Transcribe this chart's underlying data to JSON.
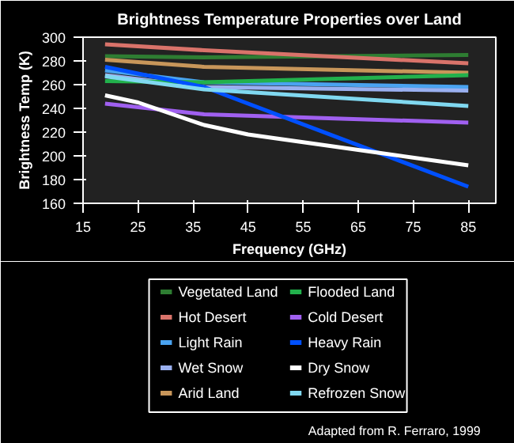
{
  "chart_data": {
    "type": "line",
    "title": "Brightness Temperature Properties over Land",
    "xlabel": "Frequency (GHz)",
    "ylabel": "Brightness Temp (K)",
    "xlim": [
      15,
      90
    ],
    "xticks": [
      15,
      25,
      35,
      45,
      55,
      65,
      75,
      85
    ],
    "ylim": [
      160,
      300
    ],
    "yticks": [
      160,
      180,
      200,
      220,
      240,
      260,
      280,
      300
    ],
    "grid": false,
    "legend": "bottom",
    "annotations": [
      "Adapted from R. Ferraro, 1999"
    ],
    "x": [
      19,
      37,
      85
    ],
    "series": [
      {
        "name": "Vegetated Land",
        "color": "#2e7d32",
        "values": [
          284,
          283,
          285
        ]
      },
      {
        "name": "Hot Desert",
        "color": "#d9736a",
        "values": [
          294,
          289,
          278
        ]
      },
      {
        "name": "Light Rain",
        "color": "#4aa3f0",
        "values": [
          272,
          262,
          258
        ]
      },
      {
        "name": "Wet Snow",
        "color": "#9ab0f0",
        "values": [
          268,
          258,
          255
        ]
      },
      {
        "name": "Arid Land",
        "color": "#c8965a",
        "values": [
          281,
          275,
          270
        ]
      },
      {
        "name": "Flooded Land",
        "color": "#22b14c",
        "values": [
          263,
          262,
          268
        ]
      },
      {
        "name": "Cold Desert",
        "color": "#a060f0",
        "values": [
          244,
          235,
          228
        ]
      },
      {
        "name": "Heavy Rain",
        "color": "#0050ff",
        "values": [
          275,
          258,
          174
        ]
      },
      {
        "name": "Dry Snow",
        "color": "#ffffff",
        "x": [
          19,
          25,
          37,
          45,
          65,
          85
        ],
        "values": [
          251,
          245,
          226,
          218,
          205,
          192
        ]
      },
      {
        "name": "Refrozen Snow",
        "color": "#80d8f0",
        "values": [
          267,
          256,
          242
        ]
      }
    ]
  }
}
